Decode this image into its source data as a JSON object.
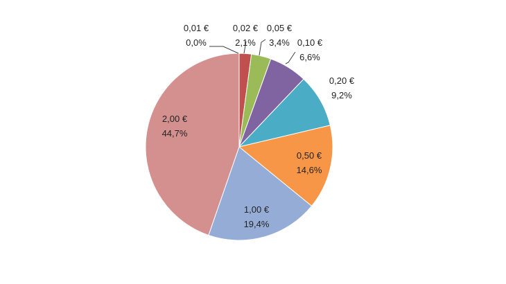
{
  "chart_data": {
    "type": "pie",
    "title": "",
    "categories": [
      "0,01 €",
      "0,02 €",
      "0,05 €",
      "0,10 €",
      "0,20 €",
      "0,50 €",
      "1,00 €",
      "2,00 €"
    ],
    "values": [
      0.0,
      2.1,
      3.4,
      6.6,
      9.2,
      14.6,
      19.4,
      44.7
    ],
    "value_labels": [
      "0,0%",
      "2,1%",
      "3,4%",
      "6,6%",
      "9,2%",
      "14,6%",
      "19,4%",
      "44,7%"
    ],
    "colors": [
      "#4F81BD",
      "#C0504D",
      "#9BBB59",
      "#8064A2",
      "#4BACC6",
      "#F79646",
      "#95ADD6",
      "#D4908F"
    ],
    "start_angle": "12 o'clock",
    "direction": "clockwise",
    "legend": "none"
  }
}
